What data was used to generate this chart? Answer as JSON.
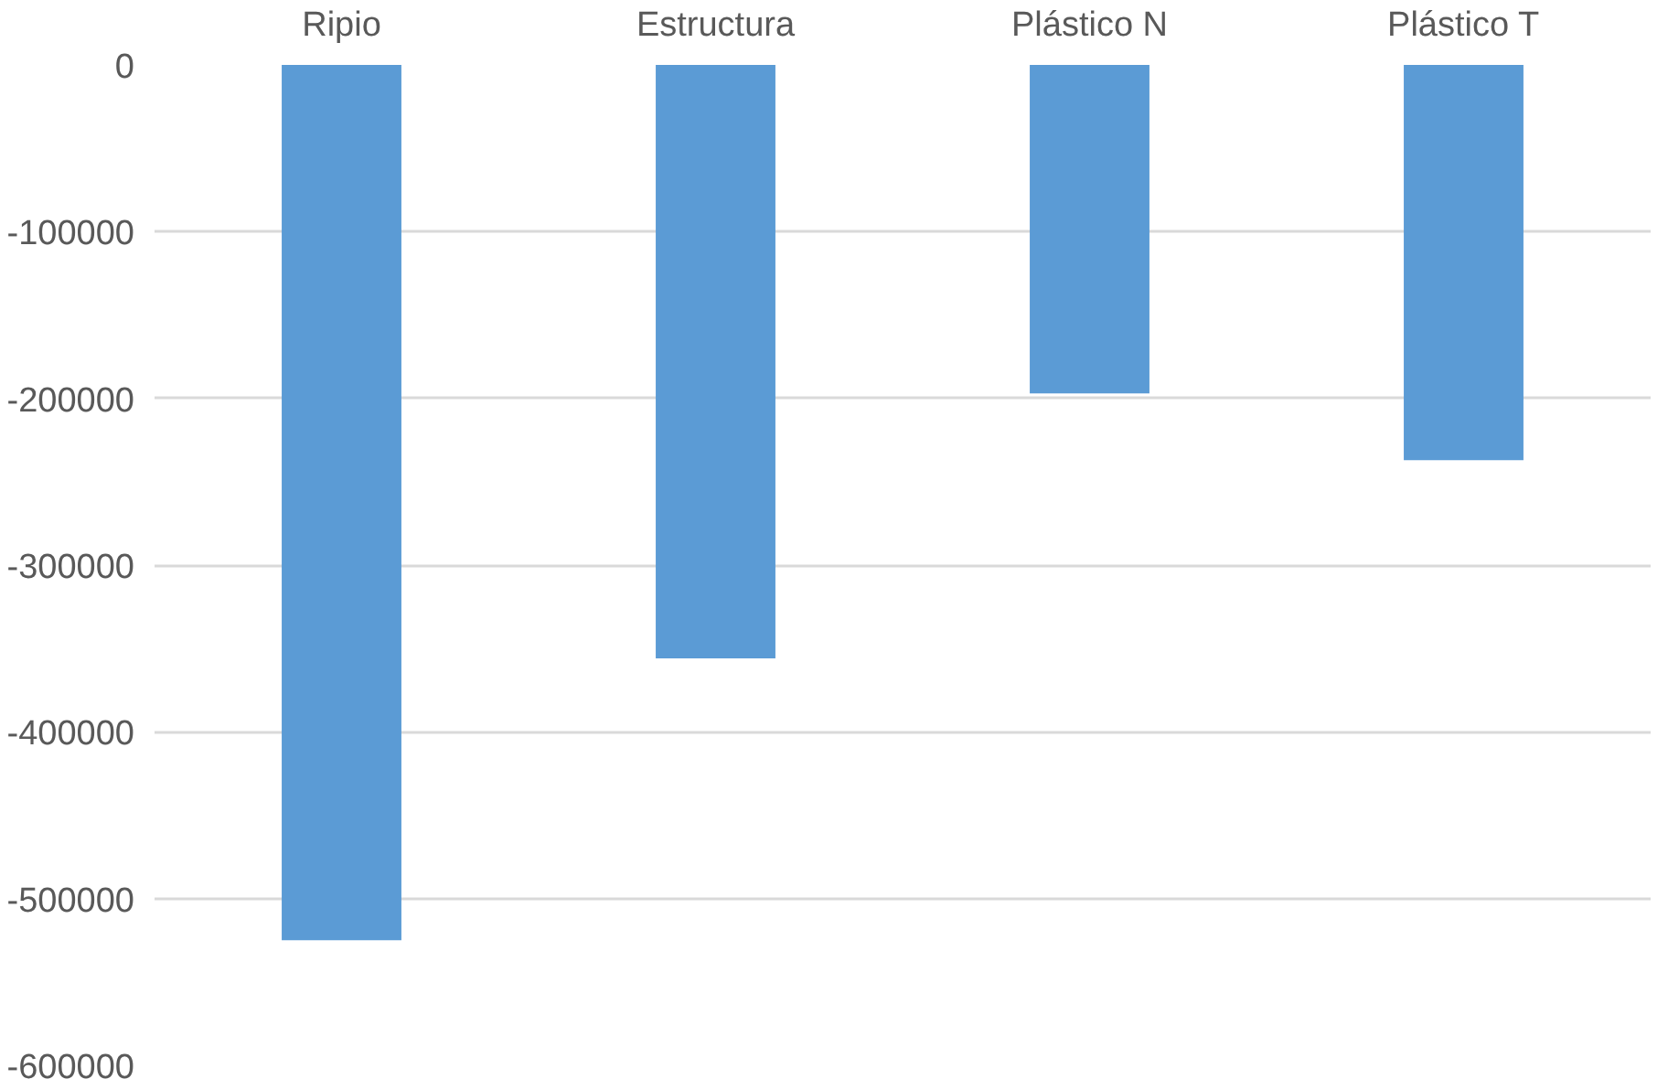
{
  "chart_data": {
    "type": "bar",
    "categories": [
      "Ripio",
      "Estructura",
      "Plástico N",
      "Plástico T"
    ],
    "values": [
      -525000,
      -356000,
      -197000,
      -237000
    ],
    "color": "#5b9bd5",
    "ylim": [
      -600000,
      0
    ],
    "yticks": [
      -600000,
      -500000,
      -400000,
      -300000,
      -200000,
      -100000,
      0
    ],
    "grid": "y"
  }
}
